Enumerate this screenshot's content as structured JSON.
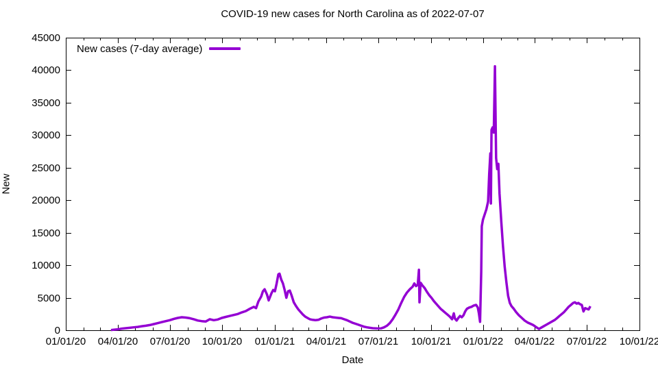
{
  "window": {
    "background": "#ffffff"
  },
  "chart": {
    "title": "COVID-19 new cases for North Carolina as of 2022-07-07",
    "legend_label": "New cases (7-day average)",
    "xlabel": "Date",
    "ylabel": "New",
    "line_color": "#9400d3",
    "axis_color": "#000000",
    "text_color": "#000000"
  },
  "chart_data": {
    "type": "line",
    "title": "COVID-19 new cases for North Carolina as of 2022-07-07",
    "xlabel": "Date",
    "ylabel": "New",
    "grid": false,
    "legend_position": "top-left-inside",
    "x_range": [
      "2020-01-01",
      "2022-10-01"
    ],
    "ylim": [
      0,
      45000
    ],
    "y_ticks": [
      0,
      5000,
      10000,
      15000,
      20000,
      25000,
      30000,
      35000,
      40000,
      45000
    ],
    "y_tick_labels": [
      "0",
      "5000",
      "10000",
      "15000",
      "20000",
      "25000",
      "30000",
      "35000",
      "40000",
      "45000"
    ],
    "x_ticks": [
      "2020-01-01",
      "2020-04-01",
      "2020-07-01",
      "2020-10-01",
      "2021-01-01",
      "2021-04-01",
      "2021-07-01",
      "2021-10-01",
      "2022-01-01",
      "2022-04-01",
      "2022-07-01",
      "2022-10-01"
    ],
    "x_tick_labels": [
      "01/01/20",
      "04/01/20",
      "07/01/20",
      "10/01/20",
      "01/01/21",
      "04/01/21",
      "07/01/21",
      "10/01/21",
      "01/01/22",
      "04/01/22",
      "07/01/22",
      "10/01/22"
    ],
    "minor_x_ticks": "monthly",
    "series": [
      {
        "name": "New cases (7-day average)",
        "color": "#9400d3",
        "points": [
          [
            "2020-03-20",
            30
          ],
          [
            "2020-03-25",
            80
          ],
          [
            "2020-04-01",
            150
          ],
          [
            "2020-04-08",
            250
          ],
          [
            "2020-04-15",
            320
          ],
          [
            "2020-04-22",
            380
          ],
          [
            "2020-04-29",
            450
          ],
          [
            "2020-05-06",
            520
          ],
          [
            "2020-05-13",
            620
          ],
          [
            "2020-05-20",
            700
          ],
          [
            "2020-05-27",
            800
          ],
          [
            "2020-06-03",
            950
          ],
          [
            "2020-06-10",
            1100
          ],
          [
            "2020-06-17",
            1250
          ],
          [
            "2020-06-24",
            1400
          ],
          [
            "2020-07-01",
            1550
          ],
          [
            "2020-07-08",
            1750
          ],
          [
            "2020-07-15",
            1900
          ],
          [
            "2020-07-22",
            2000
          ],
          [
            "2020-07-29",
            1950
          ],
          [
            "2020-08-05",
            1850
          ],
          [
            "2020-08-12",
            1700
          ],
          [
            "2020-08-19",
            1500
          ],
          [
            "2020-08-26",
            1400
          ],
          [
            "2020-09-02",
            1350
          ],
          [
            "2020-09-09",
            1700
          ],
          [
            "2020-09-16",
            1550
          ],
          [
            "2020-09-23",
            1650
          ],
          [
            "2020-09-30",
            1900
          ],
          [
            "2020-10-07",
            2050
          ],
          [
            "2020-10-14",
            2200
          ],
          [
            "2020-10-21",
            2350
          ],
          [
            "2020-10-28",
            2500
          ],
          [
            "2020-11-04",
            2750
          ],
          [
            "2020-11-11",
            2950
          ],
          [
            "2020-11-18",
            3300
          ],
          [
            "2020-11-25",
            3600
          ],
          [
            "2020-11-29",
            3400
          ],
          [
            "2020-12-03",
            4400
          ],
          [
            "2020-12-08",
            5200
          ],
          [
            "2020-12-11",
            6000
          ],
          [
            "2020-12-14",
            6300
          ],
          [
            "2020-12-18",
            5500
          ],
          [
            "2020-12-21",
            4600
          ],
          [
            "2020-12-26",
            5700
          ],
          [
            "2020-12-29",
            6200
          ],
          [
            "2021-01-01",
            6000
          ],
          [
            "2021-01-04",
            7200
          ],
          [
            "2021-01-07",
            8600
          ],
          [
            "2021-01-09",
            8700
          ],
          [
            "2021-01-12",
            7800
          ],
          [
            "2021-01-15",
            7200
          ],
          [
            "2021-01-18",
            6200
          ],
          [
            "2021-01-21",
            5000
          ],
          [
            "2021-01-24",
            6000
          ],
          [
            "2021-01-27",
            6100
          ],
          [
            "2021-01-30",
            5400
          ],
          [
            "2021-02-03",
            4300
          ],
          [
            "2021-02-07",
            3700
          ],
          [
            "2021-02-11",
            3200
          ],
          [
            "2021-02-15",
            2800
          ],
          [
            "2021-02-19",
            2400
          ],
          [
            "2021-02-23",
            2100
          ],
          [
            "2021-02-27",
            1900
          ],
          [
            "2021-03-03",
            1700
          ],
          [
            "2021-03-08",
            1600
          ],
          [
            "2021-03-13",
            1550
          ],
          [
            "2021-03-18",
            1600
          ],
          [
            "2021-03-23",
            1800
          ],
          [
            "2021-03-28",
            1950
          ],
          [
            "2021-04-02",
            2000
          ],
          [
            "2021-04-07",
            2100
          ],
          [
            "2021-04-12",
            2000
          ],
          [
            "2021-04-17",
            1950
          ],
          [
            "2021-04-22",
            1900
          ],
          [
            "2021-04-27",
            1850
          ],
          [
            "2021-05-02",
            1700
          ],
          [
            "2021-05-07",
            1550
          ],
          [
            "2021-05-12",
            1350
          ],
          [
            "2021-05-17",
            1150
          ],
          [
            "2021-05-22",
            1000
          ],
          [
            "2021-05-27",
            850
          ],
          [
            "2021-06-01",
            700
          ],
          [
            "2021-06-06",
            550
          ],
          [
            "2021-06-11",
            450
          ],
          [
            "2021-06-16",
            380
          ],
          [
            "2021-06-21",
            320
          ],
          [
            "2021-06-26",
            290
          ],
          [
            "2021-07-01",
            270
          ],
          [
            "2021-07-06",
            300
          ],
          [
            "2021-07-11",
            450
          ],
          [
            "2021-07-16",
            700
          ],
          [
            "2021-07-21",
            1100
          ],
          [
            "2021-07-26",
            1700
          ],
          [
            "2021-07-31",
            2400
          ],
          [
            "2021-08-05",
            3200
          ],
          [
            "2021-08-10",
            4200
          ],
          [
            "2021-08-15",
            5100
          ],
          [
            "2021-08-20",
            5800
          ],
          [
            "2021-08-25",
            6300
          ],
          [
            "2021-08-30",
            6700
          ],
          [
            "2021-09-02",
            7200
          ],
          [
            "2021-09-05",
            6800
          ],
          [
            "2021-09-08",
            7000
          ],
          [
            "2021-09-10",
            9300
          ],
          [
            "2021-09-11",
            4300
          ],
          [
            "2021-09-13",
            7300
          ],
          [
            "2021-09-16",
            6900
          ],
          [
            "2021-09-20",
            6500
          ],
          [
            "2021-09-24",
            5900
          ],
          [
            "2021-09-28",
            5400
          ],
          [
            "2021-10-02",
            5000
          ],
          [
            "2021-10-06",
            4500
          ],
          [
            "2021-10-10",
            4100
          ],
          [
            "2021-10-14",
            3700
          ],
          [
            "2021-10-18",
            3300
          ],
          [
            "2021-10-22",
            3000
          ],
          [
            "2021-10-26",
            2700
          ],
          [
            "2021-10-30",
            2400
          ],
          [
            "2021-11-03",
            2100
          ],
          [
            "2021-11-07",
            1700
          ],
          [
            "2021-11-10",
            2600
          ],
          [
            "2021-11-12",
            1800
          ],
          [
            "2021-11-15",
            1500
          ],
          [
            "2021-11-18",
            1900
          ],
          [
            "2021-11-21",
            2200
          ],
          [
            "2021-11-24",
            2000
          ],
          [
            "2021-11-27",
            2300
          ],
          [
            "2021-11-30",
            2900
          ],
          [
            "2021-12-03",
            3300
          ],
          [
            "2021-12-07",
            3500
          ],
          [
            "2021-12-11",
            3600
          ],
          [
            "2021-12-15",
            3800
          ],
          [
            "2021-12-19",
            3900
          ],
          [
            "2021-12-22",
            3500
          ],
          [
            "2021-12-24",
            2600
          ],
          [
            "2021-12-26",
            1300
          ],
          [
            "2021-12-28",
            9000
          ],
          [
            "2021-12-29",
            16000
          ],
          [
            "2021-12-31",
            17000
          ],
          [
            "2022-01-03",
            17800
          ],
          [
            "2022-01-06",
            18600
          ],
          [
            "2022-01-09",
            19800
          ],
          [
            "2022-01-11",
            24000
          ],
          [
            "2022-01-13",
            27200
          ],
          [
            "2022-01-14",
            19500
          ],
          [
            "2022-01-15",
            30800
          ],
          [
            "2022-01-17",
            31200
          ],
          [
            "2022-01-19",
            30400
          ],
          [
            "2022-01-21",
            40600
          ],
          [
            "2022-01-23",
            26500
          ],
          [
            "2022-01-25",
            24800
          ],
          [
            "2022-01-27",
            25600
          ],
          [
            "2022-01-29",
            21000
          ],
          [
            "2022-02-01",
            16800
          ],
          [
            "2022-02-04",
            13000
          ],
          [
            "2022-02-07",
            9800
          ],
          [
            "2022-02-10",
            7400
          ],
          [
            "2022-02-13",
            5300
          ],
          [
            "2022-02-16",
            4200
          ],
          [
            "2022-02-19",
            3700
          ],
          [
            "2022-02-23",
            3300
          ],
          [
            "2022-02-27",
            2800
          ],
          [
            "2022-03-04",
            2300
          ],
          [
            "2022-03-09",
            1900
          ],
          [
            "2022-03-14",
            1500
          ],
          [
            "2022-03-19",
            1200
          ],
          [
            "2022-03-24",
            1000
          ],
          [
            "2022-03-29",
            800
          ],
          [
            "2022-04-03",
            500
          ],
          [
            "2022-04-08",
            200
          ],
          [
            "2022-04-12",
            400
          ],
          [
            "2022-04-16",
            600
          ],
          [
            "2022-04-20",
            800
          ],
          [
            "2022-04-24",
            1000
          ],
          [
            "2022-04-28",
            1200
          ],
          [
            "2022-05-02",
            1400
          ],
          [
            "2022-05-06",
            1600
          ],
          [
            "2022-05-10",
            1900
          ],
          [
            "2022-05-14",
            2200
          ],
          [
            "2022-05-18",
            2500
          ],
          [
            "2022-05-22",
            2800
          ],
          [
            "2022-05-26",
            3200
          ],
          [
            "2022-05-30",
            3600
          ],
          [
            "2022-06-03",
            3900
          ],
          [
            "2022-06-07",
            4200
          ],
          [
            "2022-06-10",
            4300
          ],
          [
            "2022-06-13",
            4100
          ],
          [
            "2022-06-16",
            4200
          ],
          [
            "2022-06-19",
            4000
          ],
          [
            "2022-06-22",
            3900
          ],
          [
            "2022-06-25",
            2900
          ],
          [
            "2022-06-28",
            3400
          ],
          [
            "2022-07-01",
            3300
          ],
          [
            "2022-07-04",
            3200
          ],
          [
            "2022-07-07",
            3700
          ]
        ]
      }
    ]
  }
}
